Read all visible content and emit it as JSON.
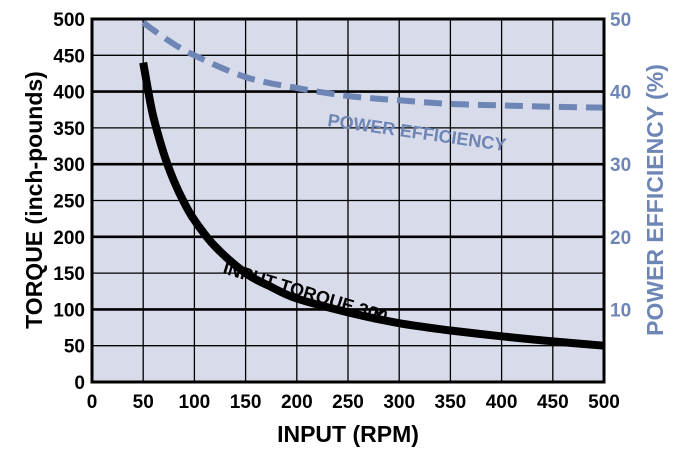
{
  "chart_data": {
    "type": "line",
    "xlabel": "INPUT (RPM)",
    "ylabel": "TORQUE (inch-pounds)",
    "y2label": "POWER EFFICIENCY (%)",
    "xlim": [
      0,
      500
    ],
    "ylim": [
      0,
      500
    ],
    "y2lim": [
      0,
      50
    ],
    "x_ticks": [
      "0",
      "50",
      "100",
      "150",
      "200",
      "250",
      "300",
      "350",
      "400",
      "450",
      "500"
    ],
    "y_ticks": [
      "0",
      "50",
      "100",
      "150",
      "200",
      "250",
      "300",
      "350",
      "400",
      "450",
      "500"
    ],
    "y2_ticks": [
      "10",
      "20",
      "30",
      "40",
      "50"
    ],
    "grid": true,
    "plot_background": "#d8dbe9",
    "series": [
      {
        "name": "INPUT TORQUE 300",
        "axis": "left",
        "color": "#000000",
        "style": "solid",
        "x": [
          50,
          55,
          60,
          70,
          80,
          90,
          100,
          120,
          150,
          175,
          200,
          250,
          300,
          350,
          400,
          450,
          500
        ],
        "y": [
          440,
          400,
          365,
          315,
          277,
          247,
          223,
          187,
          150,
          131,
          115,
          96,
          81,
          71,
          63,
          56,
          50
        ]
      },
      {
        "name": "POWER EFFICIENCY",
        "axis": "right",
        "color": "#6e86b5",
        "style": "dashed",
        "x": [
          50,
          75,
          100,
          150,
          200,
          250,
          300,
          350,
          400,
          450,
          500
        ],
        "y": [
          49.5,
          47,
          45,
          42,
          40.5,
          39.4,
          38.8,
          38.3,
          38.1,
          37.9,
          37.8
        ]
      }
    ],
    "annotations": [
      {
        "text": "INPUT TORQUE 300",
        "suffix": "Y",
        "color": "#000000"
      },
      {
        "text": "POWER EFFICIENCY",
        "color": "#6e86b5"
      }
    ]
  }
}
